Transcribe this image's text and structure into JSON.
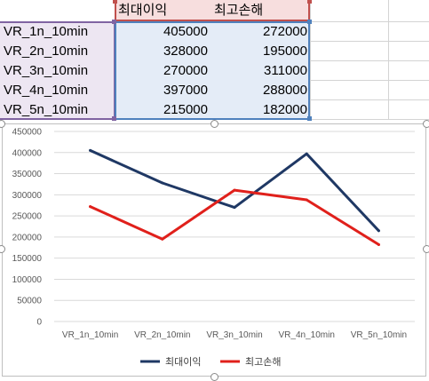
{
  "sheet": {
    "header_row": [
      "",
      "최대이익",
      "최고손해"
    ],
    "rows": [
      {
        "label": "VR_1n_10min",
        "max_profit": "405000",
        "max_loss": "272000"
      },
      {
        "label": "VR_2n_10min",
        "max_profit": "328000",
        "max_loss": "195000"
      },
      {
        "label": "VR_3n_10min",
        "max_profit": "270000",
        "max_loss": "311000"
      },
      {
        "label": "VR_4n_10min",
        "max_profit": "397000",
        "max_loss": "288000"
      },
      {
        "label": "VR_5n_10min",
        "max_profit": "215000",
        "max_loss": "182000"
      }
    ]
  },
  "colors": {
    "series_1": "#1f3864",
    "series_2": "#e0201b",
    "header_selection": "#c0504d",
    "label_selection": "#8064a2",
    "value_selection": "#4f81bd"
  },
  "chart_data": {
    "type": "line",
    "categories": [
      "VR_1n_10min",
      "VR_2n_10min",
      "VR_3n_10min",
      "VR_4n_10min",
      "VR_5n_10min"
    ],
    "series": [
      {
        "name": "최대이익",
        "values": [
          405000,
          328000,
          270000,
          397000,
          215000
        ]
      },
      {
        "name": "최고손해",
        "values": [
          272000,
          195000,
          311000,
          288000,
          182000
        ]
      }
    ],
    "ylim": [
      0,
      450000
    ],
    "yticks": [
      0,
      50000,
      100000,
      150000,
      200000,
      250000,
      300000,
      350000,
      400000,
      450000
    ],
    "grid": true,
    "legend": "bottom",
    "title": "",
    "xlabel": "",
    "ylabel": ""
  }
}
